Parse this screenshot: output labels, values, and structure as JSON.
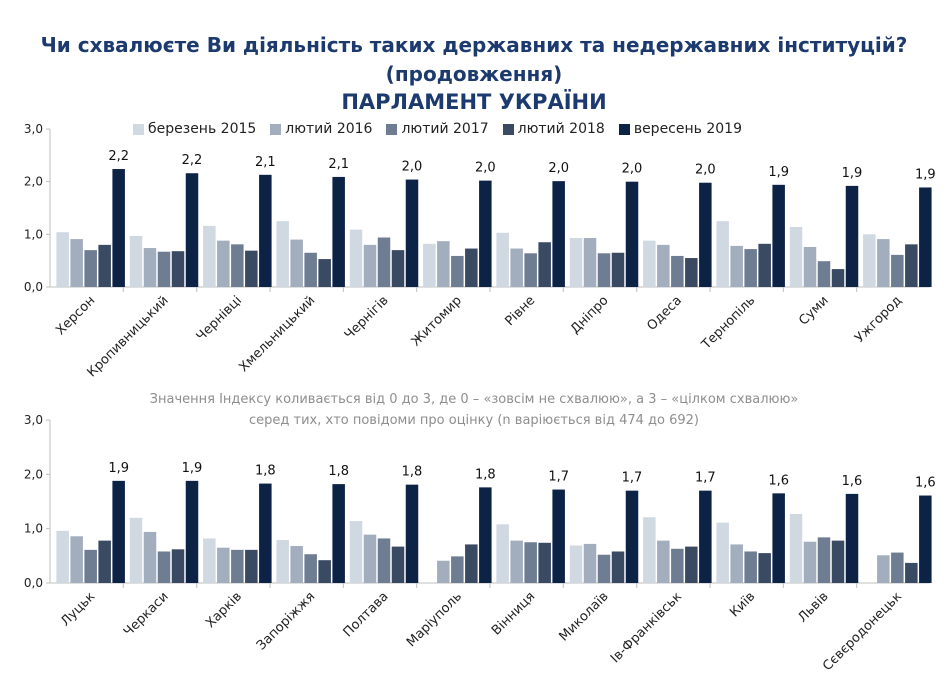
{
  "title": {
    "line1": "Чи схвалюєте Ви діяльність таких державних та недержавних інституцій?",
    "line2": "(продовження)",
    "line3": "ПАРЛАМЕНТ УКРАЇНИ"
  },
  "note": {
    "line1": "Значення Індексу коливається від 0 до 3, де 0 – «зовсім не схвалюю», а 3 – «цілком схвалюю»",
    "line2": "серед тих, хто повідоми про оцінку (n варіюється від 474 до 692)"
  },
  "legend": [
    {
      "label": "березень 2015",
      "color": "#d0d8e2"
    },
    {
      "label": "лютий 2016",
      "color": "#a2aebd"
    },
    {
      "label": "лютий 2017",
      "color": "#6f7d92"
    },
    {
      "label": "лютий 2018",
      "color": "#3a4a63"
    },
    {
      "label": "вересень 2019",
      "color": "#0d2346"
    }
  ],
  "chart_data": [
    {
      "type": "bar",
      "categories": [
        "Херсон",
        "Кропивницький",
        "Чернівці",
        "Хмельницький",
        "Чернігів",
        "Житомир",
        "Рівне",
        "Дніпро",
        "Одеса",
        "Тернопіль",
        "Суми",
        "Ужгород"
      ],
      "ylim": [
        0,
        3
      ],
      "yticks": [
        "0,0",
        "1,0",
        "2,0",
        "3,0"
      ],
      "series": [
        {
          "name": "березень 2015",
          "values": [
            1.04,
            0.97,
            1.16,
            1.25,
            1.09,
            0.82,
            1.03,
            0.93,
            0.88,
            1.25,
            1.14,
            1.0
          ]
        },
        {
          "name": "лютий 2016",
          "values": [
            0.91,
            0.74,
            0.88,
            0.9,
            0.8,
            0.87,
            0.73,
            0.93,
            0.8,
            0.78,
            0.76,
            0.91
          ]
        },
        {
          "name": "лютий 2017",
          "values": [
            0.7,
            0.67,
            0.81,
            0.65,
            0.94,
            0.59,
            0.64,
            0.64,
            0.59,
            0.72,
            0.49,
            0.61
          ]
        },
        {
          "name": "лютий 2018",
          "values": [
            0.8,
            0.68,
            0.69,
            0.53,
            0.7,
            0.73,
            0.85,
            0.65,
            0.55,
            0.82,
            0.34,
            0.81
          ]
        },
        {
          "name": "вересень 2019",
          "values": [
            2.24,
            2.16,
            2.13,
            2.09,
            2.04,
            2.02,
            2.01,
            2.0,
            1.98,
            1.94,
            1.92,
            1.89
          ]
        }
      ],
      "data_labels": [
        "2,2",
        "2,2",
        "2,1",
        "2,1",
        "2,0",
        "2,0",
        "2,0",
        "2,0",
        "2,0",
        "1,9",
        "1,9",
        "1,9"
      ]
    },
    {
      "type": "bar",
      "categories": [
        "Луцьк",
        "Черкаси",
        "Харків",
        "Запоріжжя",
        "Полтава",
        "Маріуполь",
        "Вінниця",
        "Миколаїв",
        "Ів-Франківськ",
        "Київ",
        "Львів",
        "Сєвєродонецьк"
      ],
      "ylim": [
        0,
        3
      ],
      "yticks": [
        "0,0",
        "1,0",
        "2,0",
        "3,0"
      ],
      "series": [
        {
          "name": "березень 2015",
          "values": [
            0.96,
            1.2,
            0.82,
            0.79,
            1.14,
            null,
            1.08,
            0.69,
            1.21,
            1.11,
            1.27,
            null
          ]
        },
        {
          "name": "лютий 2016",
          "values": [
            0.86,
            0.94,
            0.65,
            0.68,
            0.89,
            0.41,
            0.78,
            0.72,
            0.78,
            0.71,
            0.76,
            0.51
          ]
        },
        {
          "name": "лютий 2017",
          "values": [
            0.61,
            0.58,
            0.61,
            0.53,
            0.82,
            0.49,
            0.75,
            0.52,
            0.63,
            0.58,
            0.84,
            0.56
          ]
        },
        {
          "name": "лютий 2018",
          "values": [
            0.78,
            0.62,
            0.61,
            0.42,
            0.67,
            0.71,
            0.74,
            0.58,
            0.67,
            0.55,
            0.78,
            0.37
          ]
        },
        {
          "name": "вересень 2019",
          "values": [
            1.88,
            1.88,
            1.83,
            1.82,
            1.81,
            1.76,
            1.72,
            1.7,
            1.7,
            1.65,
            1.64,
            1.61
          ]
        }
      ],
      "data_labels": [
        "1,9",
        "1,9",
        "1,8",
        "1,8",
        "1,8",
        "1,8",
        "1,7",
        "1,7",
        "1,7",
        "1,6",
        "1,6",
        "1,6"
      ]
    }
  ]
}
